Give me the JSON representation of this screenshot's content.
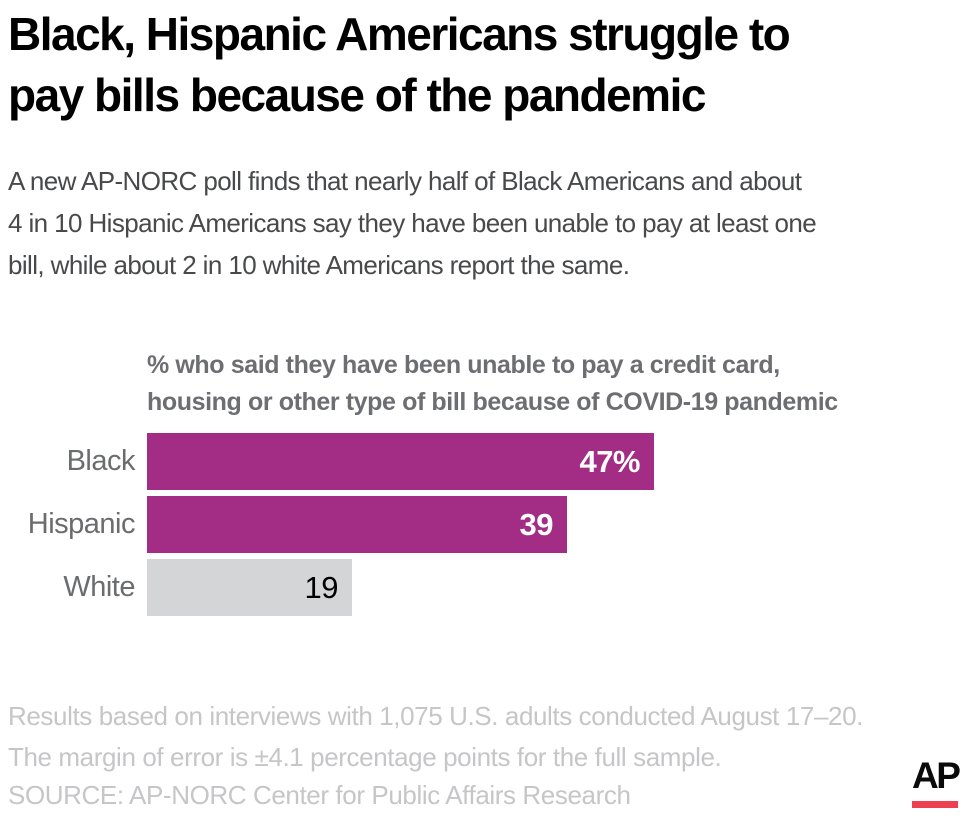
{
  "header": {
    "title": "Black, Hispanic Americans struggle to pay bills because of the pandemic",
    "title_lines": [
      "Black, Hispanic Americans struggle to",
      "pay bills because of the pandemic"
    ],
    "subtitle": "A new AP-NORC poll finds that nearly half of Black Americans and about 4 in 10 Hispanic Americans say they have been unable to pay at least one bill, while about 2 in 10 white Americans report the same.",
    "subtitle_lines": [
      "A new AP-NORC poll finds that nearly half of Black Americans and about",
      "4 in 10 Hispanic Americans say they have been unable to pay at least one",
      "bill, while about 2 in 10 white Americans report the same."
    ]
  },
  "chart_data": {
    "type": "bar",
    "orientation": "horizontal",
    "title": "% who said they have been unable to pay a credit card, housing or other type of bill because of COVID-19 pandemic",
    "title_lines": [
      "% who said they have been unable to pay a credit card,",
      "housing or other type of bill because of COVID-19 pandemic"
    ],
    "categories": [
      "Black",
      "Hispanic",
      "White"
    ],
    "values": [
      47,
      39,
      19
    ],
    "value_labels": [
      "47%",
      "39",
      "19"
    ],
    "bar_colors": [
      "#a32d84",
      "#a32d84",
      "#d4d5d7"
    ],
    "value_label_colors": [
      "#ffffff",
      "#ffffff",
      "#000000"
    ],
    "value_label_bold": [
      true,
      true,
      false
    ],
    "xlim": [
      0,
      75
    ],
    "grid": false,
    "legend": false,
    "axis_ticks_visible": false
  },
  "footer": {
    "footnote": "Results based on interviews with 1,075 U.S. adults conducted August 17–20. The margin of error is ±4.1 percentage points for the full sample.",
    "footnote_lines": [
      "Results based on interviews with 1,075 U.S. adults conducted August 17–20.",
      "The margin of error is ±4.1 percentage points for the full sample."
    ],
    "source": "SOURCE: AP-NORC Center for Public Affairs Research",
    "logo_text": "AP"
  },
  "colors": {
    "accent_magenta": "#a32d84",
    "bar_gray": "#d4d5d7",
    "title": "#000000",
    "subtitle": "#48494b",
    "chart_title": "#6d6e71",
    "category_label": "#6b6c6e",
    "footnote": "#c6c6c8",
    "ap_red": "#ef4050",
    "background": "#ffffff"
  }
}
